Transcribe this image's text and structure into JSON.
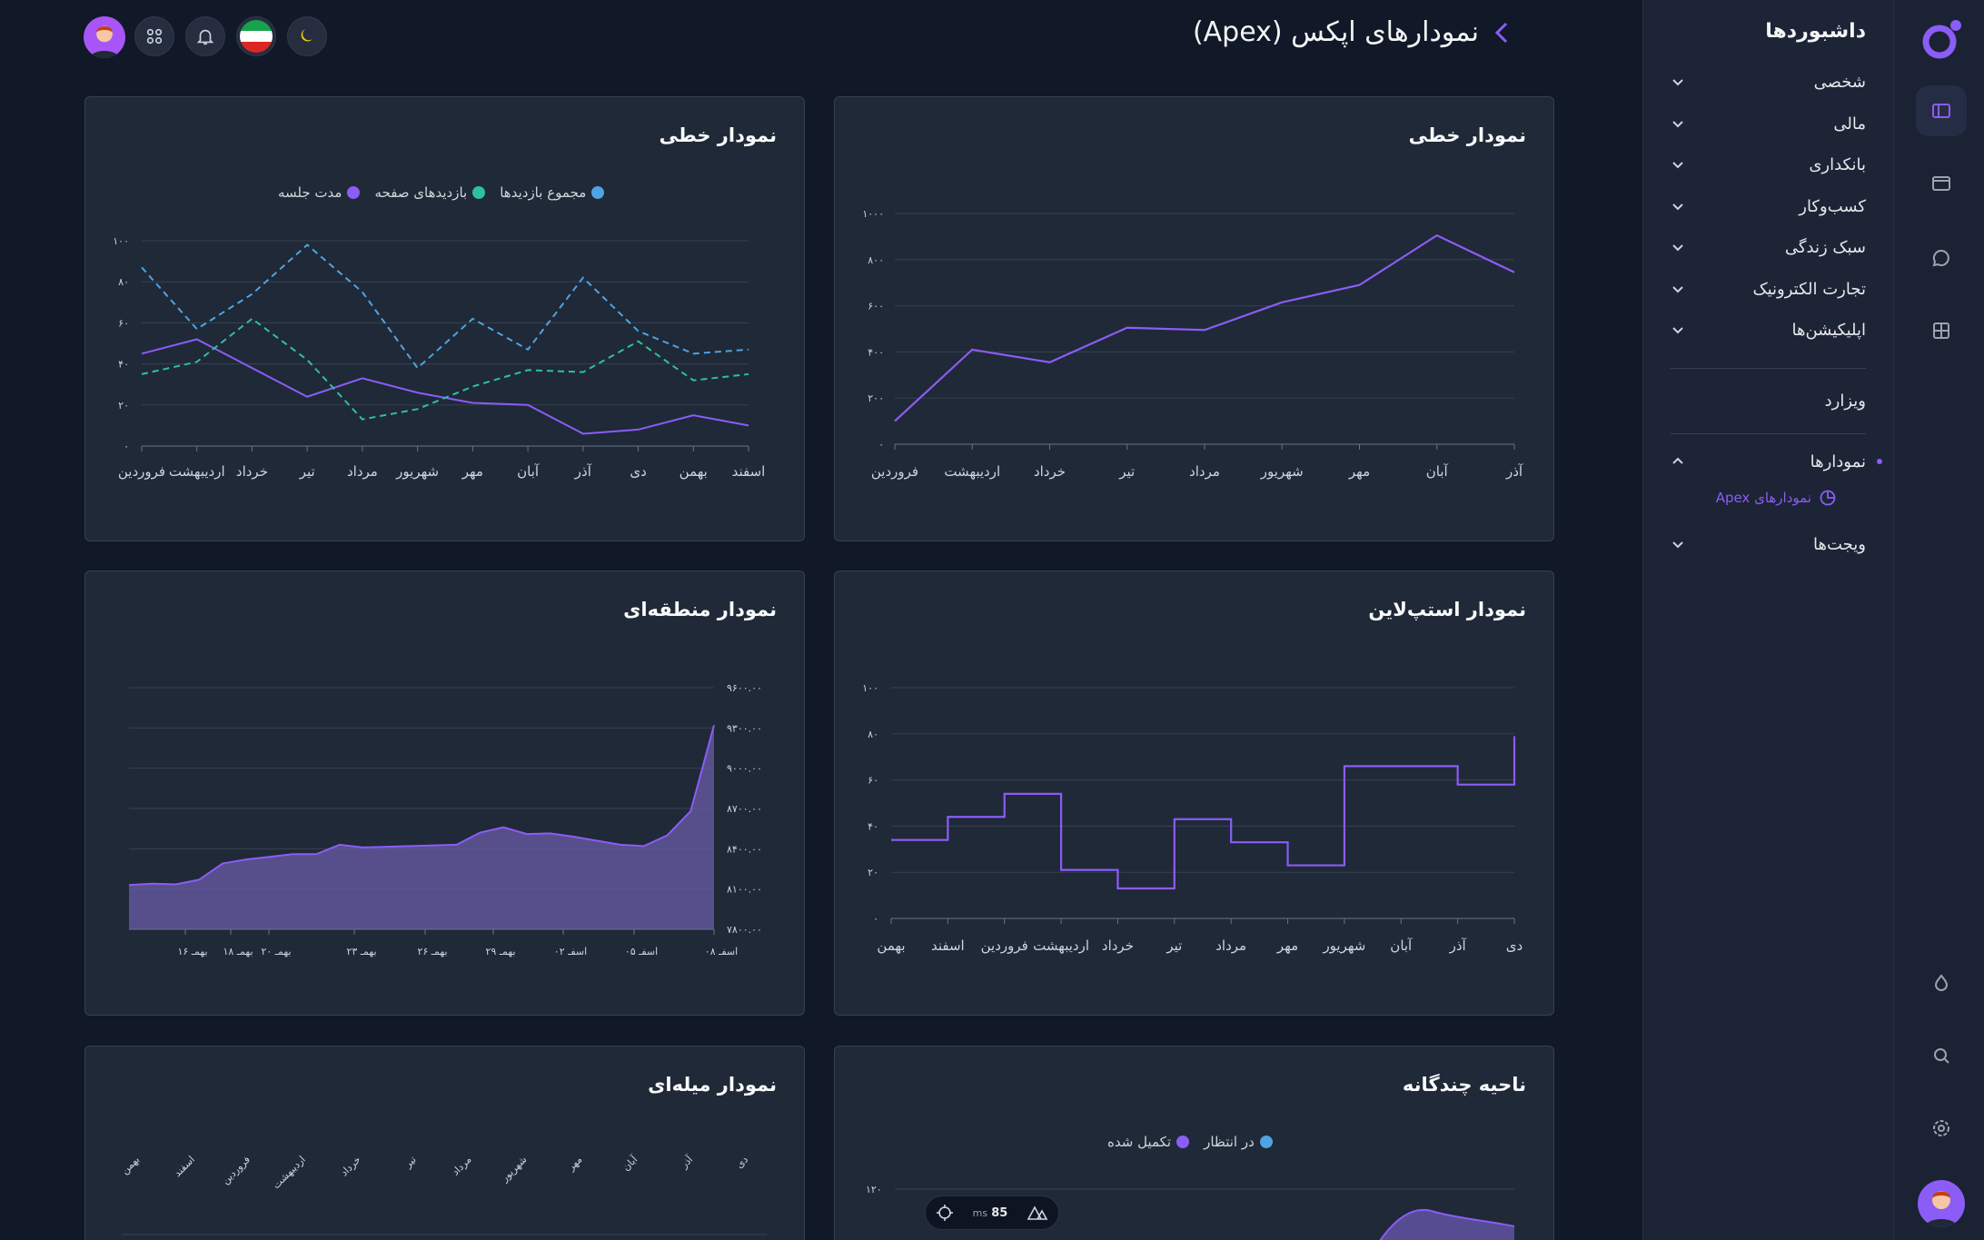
{
  "header": {
    "title": "نمودارهای اپکس (Apex)",
    "icons": [
      "moon-icon",
      "flag-iran",
      "bell-icon",
      "apps-icon",
      "user-avatar"
    ]
  },
  "subnav": {
    "title": "داشبوردها",
    "items": [
      {
        "label": "شخصی"
      },
      {
        "label": "مالی"
      },
      {
        "label": "بانکداری"
      },
      {
        "label": "کسب‌وکار"
      },
      {
        "label": "سبک زندگی"
      },
      {
        "label": "تجارت الکترونیک"
      },
      {
        "label": "اپلیکیشن‌ها"
      }
    ],
    "wizard": "ویزارد",
    "charts": "نمودارها",
    "charts_sub": "نمودارهای Apex",
    "widgets": "ویجت‌ها"
  },
  "colors": {
    "accent": "#8b5cf6",
    "teal": "#2dd4bf",
    "blue": "#3b9ee6",
    "bg": "#111827",
    "card": "#1f2937"
  },
  "cards": {
    "line1": {
      "title": "نمودار خطی"
    },
    "line2": {
      "title": "نمودار خطی",
      "legend": [
        "مجموع بازدیدها",
        "بازدیدهای صفحه",
        "مدت جلسه"
      ]
    },
    "stepline": {
      "title": "نمودار استپ‌لاین"
    },
    "area": {
      "title": "نمودار منطقه‌ای"
    },
    "rangearea": {
      "title": "ناحیه چندگانه",
      "legend": [
        "در انتظار",
        "تکمیل شده"
      ],
      "ytick": "۱۲۰"
    },
    "bar": {
      "title": "نمودار میله‌ای"
    }
  },
  "floatbar": {
    "ms_value": "85",
    "ms_label": "ms"
  },
  "chart_data": [
    {
      "type": "line",
      "title": "نمودار خطی",
      "categories": [
        "فروردین",
        "اردیبهشت",
        "خرداد",
        "تیر",
        "مرداد",
        "شهریور",
        "مهر",
        "آبان",
        "آذر"
      ],
      "values": [
        100,
        410,
        355,
        505,
        495,
        615,
        690,
        905,
        745
      ],
      "ylim": [
        0,
        1000
      ],
      "yticks": [
        "۰",
        "۲۰۰",
        "۴۰۰",
        "۶۰۰",
        "۸۰۰",
        "۱۰۰۰"
      ]
    },
    {
      "type": "line",
      "title": "نمودار خطی",
      "categories": [
        "فروردین",
        "اردیبهشت",
        "خرداد",
        "تیر",
        "مرداد",
        "شهریور",
        "مهر",
        "آبان",
        "آذر",
        "دی",
        "بهمن",
        "اسفند"
      ],
      "series": [
        {
          "name": "مدت جلسه",
          "values": [
            45,
            52,
            38,
            24,
            33,
            26,
            21,
            20,
            6,
            8,
            15,
            10
          ],
          "style": "solid"
        },
        {
          "name": "بازدیدهای صفحه",
          "values": [
            35,
            41,
            62,
            42,
            13,
            18,
            29,
            37,
            36,
            51,
            32,
            35
          ],
          "style": "dashed"
        },
        {
          "name": "مجموع بازدیدها",
          "values": [
            87,
            57,
            74,
            98,
            75,
            38,
            62,
            47,
            82,
            56,
            45,
            47
          ],
          "style": "dashed"
        }
      ],
      "ylim": [
        0,
        100
      ],
      "yticks": [
        "۰",
        "۲۰",
        "۴۰",
        "۶۰",
        "۸۰",
        "۱۰۰"
      ]
    },
    {
      "type": "line",
      "title": "نمودار استپ‌لاین",
      "categories": [
        "بهمن",
        "اسفند",
        "فروردین",
        "اردیبهشت",
        "خرداد",
        "تیر",
        "مرداد",
        "مهر",
        "شهریور",
        "آبان",
        "آذر",
        "دی"
      ],
      "values": [
        34,
        44,
        54,
        21,
        13,
        43,
        33,
        23,
        66,
        66,
        58,
        79
      ],
      "ylim": [
        0,
        100
      ],
      "yticks": [
        "۰",
        "۲۰",
        "۴۰",
        "۶۰",
        "۸۰",
        "۱۰۰"
      ]
    },
    {
      "type": "area",
      "title": "نمودار منطقه‌ای",
      "xticks": [
        "۱۶ بهمـ",
        "۱۸ بهمـ",
        "۲۰ بهمـ",
        "۲۳ بهمـ",
        "۲۶ بهمـ",
        "۲۹ بهمـ",
        "۰۲ اسفـ",
        "۰۵ اسفـ",
        "۰۸ اسفـ"
      ],
      "values": [
        8130,
        8140,
        8135,
        8170,
        8290,
        8320,
        8340,
        8360,
        8360,
        8430,
        8410,
        8415,
        8420,
        8425,
        8430,
        8520,
        8560,
        8510,
        8515,
        8490,
        8460,
        8430,
        8420,
        8500,
        8680,
        9320
      ],
      "ylim": [
        7800,
        9600
      ],
      "yticks": [
        "۷۸۰۰.۰۰",
        "۸۱۰۰.۰۰",
        "۸۴۰۰.۰۰",
        "۸۷۰۰.۰۰",
        "۹۰۰۰.۰۰",
        "۹۳۰۰.۰۰",
        "۹۶۰۰.۰۰"
      ]
    },
    {
      "type": "bar",
      "title": "نمودار میله‌ای",
      "categories": [
        "بهمن",
        "اسفند",
        "فروردین",
        "اردیبهشت",
        "خرداد",
        "تیر",
        "مرداد",
        "شهریور",
        "مهر",
        "آبان",
        "آذر",
        "دی"
      ]
    }
  ]
}
